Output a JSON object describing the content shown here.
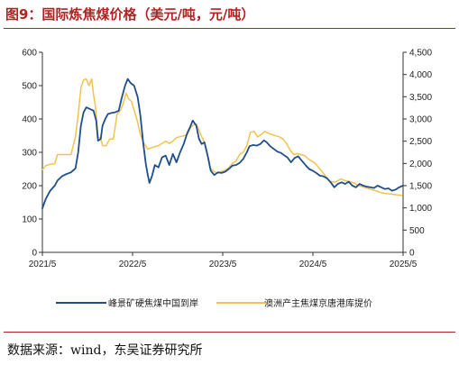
{
  "title": "图9：国际炼焦煤价格（美元/吨，元/吨）",
  "source": "数据来源：wind，东吴证券研究所",
  "chart_data": {
    "type": "line",
    "title": "图9：国际炼焦煤价格（美元/吨，元/吨）",
    "x_ticks": [
      "2021/5",
      "2022/5",
      "2023/5",
      "2024/5",
      "2025/5"
    ],
    "xlim": [
      "2021/5",
      "2025/5"
    ],
    "y_left": {
      "ylim": [
        0,
        600
      ],
      "ticks": [
        "0",
        "100",
        "200",
        "300",
        "400",
        "500",
        "600"
      ]
    },
    "y_right": {
      "ylim": [
        0,
        4500
      ],
      "ticks": [
        "0",
        "500",
        "1,000",
        "1,500",
        "2,000",
        "2,500",
        "3,000",
        "3,500",
        "4,000",
        "4,500"
      ]
    },
    "grid": false,
    "legend": "bottom",
    "series": [
      {
        "name": "峰景矿硬焦煤中国到岸",
        "axis": "left",
        "color": "#1f4e8c",
        "points": [
          [
            2021.33,
            130
          ],
          [
            2021.37,
            160
          ],
          [
            2021.42,
            185
          ],
          [
            2021.47,
            200
          ],
          [
            2021.5,
            215
          ],
          [
            2021.55,
            228
          ],
          [
            2021.6,
            235
          ],
          [
            2021.65,
            240
          ],
          [
            2021.7,
            252
          ],
          [
            2021.73,
            300
          ],
          [
            2021.76,
            380
          ],
          [
            2021.79,
            420
          ],
          [
            2021.82,
            435
          ],
          [
            2021.86,
            430
          ],
          [
            2021.9,
            425
          ],
          [
            2021.93,
            395
          ],
          [
            2021.95,
            335
          ],
          [
            2021.98,
            340
          ],
          [
            2022.0,
            380
          ],
          [
            2022.03,
            400
          ],
          [
            2022.06,
            415
          ],
          [
            2022.1,
            418
          ],
          [
            2022.14,
            420
          ],
          [
            2022.18,
            425
          ],
          [
            2022.21,
            460
          ],
          [
            2022.25,
            500
          ],
          [
            2022.28,
            520
          ],
          [
            2022.31,
            508
          ],
          [
            2022.35,
            500
          ],
          [
            2022.39,
            465
          ],
          [
            2022.42,
            410
          ],
          [
            2022.45,
            330
          ],
          [
            2022.48,
            265
          ],
          [
            2022.5,
            235
          ],
          [
            2022.52,
            208
          ],
          [
            2022.55,
            230
          ],
          [
            2022.58,
            262
          ],
          [
            2022.62,
            255
          ],
          [
            2022.66,
            285
          ],
          [
            2022.7,
            290
          ],
          [
            2022.74,
            262
          ],
          [
            2022.78,
            295
          ],
          [
            2022.82,
            270
          ],
          [
            2022.86,
            300
          ],
          [
            2022.9,
            325
          ],
          [
            2022.94,
            358
          ],
          [
            2022.97,
            375
          ],
          [
            2023.0,
            395
          ],
          [
            2023.04,
            380
          ],
          [
            2023.07,
            340
          ],
          [
            2023.1,
            325
          ],
          [
            2023.13,
            330
          ],
          [
            2023.17,
            285
          ],
          [
            2023.2,
            245
          ],
          [
            2023.24,
            232
          ],
          [
            2023.28,
            240
          ],
          [
            2023.32,
            238
          ],
          [
            2023.36,
            242
          ],
          [
            2023.4,
            250
          ],
          [
            2023.44,
            260
          ],
          [
            2023.48,
            262
          ],
          [
            2023.52,
            268
          ],
          [
            2023.56,
            280
          ],
          [
            2023.6,
            300
          ],
          [
            2023.63,
            318
          ],
          [
            2023.67,
            322
          ],
          [
            2023.71,
            320
          ],
          [
            2023.75,
            325
          ],
          [
            2023.79,
            336
          ],
          [
            2023.82,
            330
          ],
          [
            2023.86,
            318
          ],
          [
            2023.9,
            310
          ],
          [
            2023.94,
            302
          ],
          [
            2023.98,
            298
          ],
          [
            2024.02,
            290
          ],
          [
            2024.05,
            285
          ],
          [
            2024.09,
            270
          ],
          [
            2024.13,
            283
          ],
          [
            2024.17,
            288
          ],
          [
            2024.21,
            275
          ],
          [
            2024.25,
            262
          ],
          [
            2024.29,
            250
          ],
          [
            2024.33,
            245
          ],
          [
            2024.37,
            238
          ],
          [
            2024.41,
            230
          ],
          [
            2024.45,
            228
          ],
          [
            2024.49,
            222
          ],
          [
            2024.53,
            210
          ],
          [
            2024.57,
            195
          ],
          [
            2024.61,
            205
          ],
          [
            2024.65,
            210
          ],
          [
            2024.69,
            205
          ],
          [
            2024.73,
            212
          ],
          [
            2024.77,
            200
          ],
          [
            2024.81,
            195
          ],
          [
            2024.85,
            205
          ],
          [
            2024.89,
            200
          ],
          [
            2024.93,
            197
          ],
          [
            2024.97,
            195
          ],
          [
            2025.01,
            193
          ],
          [
            2025.05,
            200
          ],
          [
            2025.09,
            195
          ],
          [
            2025.13,
            190
          ],
          [
            2025.17,
            192
          ],
          [
            2025.21,
            185
          ],
          [
            2025.25,
            188
          ],
          [
            2025.29,
            195
          ],
          [
            2025.33,
            200
          ]
        ]
      },
      {
        "name": "澳洲产主焦煤京唐港库提价",
        "axis": "right",
        "color": "#f2c34f",
        "points": [
          [
            2021.33,
            1850
          ],
          [
            2021.37,
            1950
          ],
          [
            2021.42,
            1980
          ],
          [
            2021.47,
            1990
          ],
          [
            2021.5,
            2200
          ],
          [
            2021.55,
            2200
          ],
          [
            2021.6,
            2200
          ],
          [
            2021.65,
            2200
          ],
          [
            2021.7,
            2600
          ],
          [
            2021.73,
            3100
          ],
          [
            2021.76,
            3700
          ],
          [
            2021.79,
            3880
          ],
          [
            2021.82,
            3900
          ],
          [
            2021.85,
            3750
          ],
          [
            2021.88,
            3900
          ],
          [
            2021.9,
            3550
          ],
          [
            2021.92,
            3300
          ],
          [
            2021.95,
            2600
          ],
          [
            2021.98,
            2550
          ],
          [
            2022.0,
            2400
          ],
          [
            2022.04,
            2400
          ],
          [
            2022.08,
            2550
          ],
          [
            2022.12,
            2550
          ],
          [
            2022.16,
            3100
          ],
          [
            2022.2,
            3200
          ],
          [
            2022.23,
            3350
          ],
          [
            2022.26,
            3580
          ],
          [
            2022.29,
            3450
          ],
          [
            2022.32,
            3400
          ],
          [
            2022.35,
            3200
          ],
          [
            2022.38,
            3000
          ],
          [
            2022.42,
            2650
          ],
          [
            2022.46,
            2450
          ],
          [
            2022.5,
            2320
          ],
          [
            2022.54,
            2350
          ],
          [
            2022.58,
            2380
          ],
          [
            2022.62,
            2400
          ],
          [
            2022.66,
            2450
          ],
          [
            2022.7,
            2500
          ],
          [
            2022.74,
            2450
          ],
          [
            2022.78,
            2500
          ],
          [
            2022.82,
            2580
          ],
          [
            2022.86,
            2600
          ],
          [
            2022.9,
            2620
          ],
          [
            2022.94,
            2650
          ],
          [
            2022.98,
            2820
          ],
          [
            2023.01,
            2870
          ],
          [
            2023.04,
            2880
          ],
          [
            2023.07,
            2750
          ],
          [
            2023.1,
            2600
          ],
          [
            2023.13,
            2480
          ],
          [
            2023.16,
            2250
          ],
          [
            2023.19,
            1900
          ],
          [
            2023.22,
            1850
          ],
          [
            2023.25,
            1800
          ],
          [
            2023.28,
            1780
          ],
          [
            2023.32,
            1820
          ],
          [
            2023.36,
            1850
          ],
          [
            2023.4,
            1900
          ],
          [
            2023.44,
            2000
          ],
          [
            2023.48,
            2050
          ],
          [
            2023.52,
            2200
          ],
          [
            2023.56,
            2250
          ],
          [
            2023.6,
            2400
          ],
          [
            2023.64,
            2700
          ],
          [
            2023.68,
            2720
          ],
          [
            2023.72,
            2600
          ],
          [
            2023.76,
            2650
          ],
          [
            2023.8,
            2720
          ],
          [
            2023.84,
            2680
          ],
          [
            2023.88,
            2650
          ],
          [
            2023.92,
            2620
          ],
          [
            2023.96,
            2600
          ],
          [
            2024.0,
            2550
          ],
          [
            2024.04,
            2450
          ],
          [
            2024.08,
            2300
          ],
          [
            2024.12,
            2200
          ],
          [
            2024.16,
            2220
          ],
          [
            2024.2,
            2200
          ],
          [
            2024.24,
            2180
          ],
          [
            2024.28,
            2100
          ],
          [
            2024.32,
            2050
          ],
          [
            2024.36,
            2000
          ],
          [
            2024.4,
            1900
          ],
          [
            2024.44,
            1800
          ],
          [
            2024.48,
            1700
          ],
          [
            2024.52,
            1600
          ],
          [
            2024.56,
            1580
          ],
          [
            2024.6,
            1600
          ],
          [
            2024.64,
            1650
          ],
          [
            2024.68,
            1620
          ],
          [
            2024.72,
            1600
          ],
          [
            2024.76,
            1580
          ],
          [
            2024.8,
            1550
          ],
          [
            2024.84,
            1500
          ],
          [
            2024.88,
            1480
          ],
          [
            2024.92,
            1450
          ],
          [
            2024.96,
            1430
          ],
          [
            2025.0,
            1400
          ],
          [
            2025.04,
            1380
          ],
          [
            2025.08,
            1350
          ],
          [
            2025.12,
            1330
          ],
          [
            2025.16,
            1320
          ],
          [
            2025.2,
            1310
          ],
          [
            2025.24,
            1300
          ],
          [
            2025.28,
            1290
          ],
          [
            2025.33,
            1280
          ]
        ]
      }
    ]
  }
}
